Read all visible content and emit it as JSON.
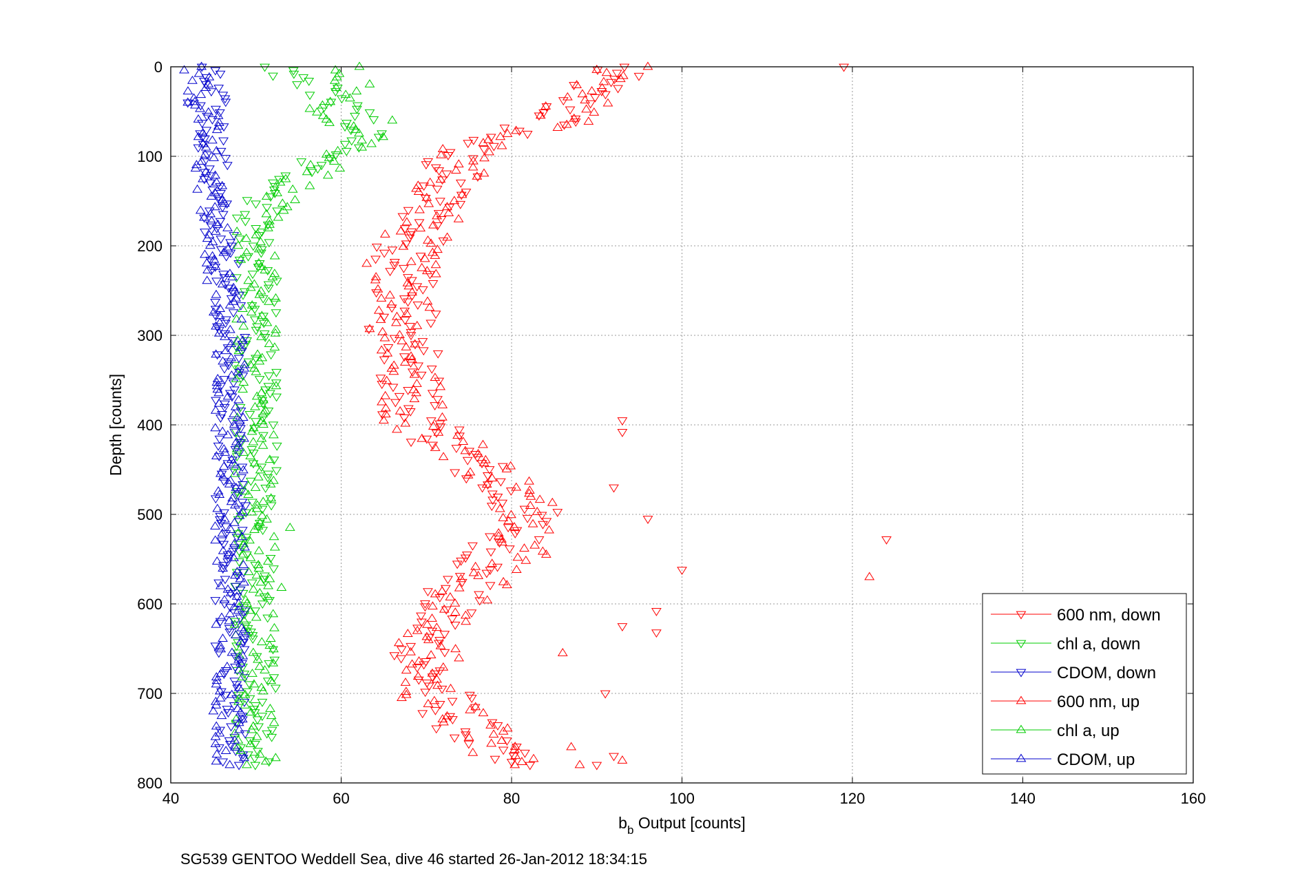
{
  "chart_data": {
    "type": "scatter",
    "title": "",
    "caption": "SG539 GENTOO Weddell Sea, dive 46 started 26-Jan-2012 18:34:15",
    "xlabel_main": "b",
    "xlabel_sub": "b",
    "xlabel_rest": " Output [counts]",
    "ylabel": "Depth [counts]",
    "xlim": [
      40,
      160
    ],
    "ylim": [
      0,
      800
    ],
    "y_reversed": true,
    "grid": true,
    "x_ticks": [
      40,
      60,
      80,
      100,
      120,
      140,
      160
    ],
    "y_ticks": [
      0,
      100,
      200,
      300,
      400,
      500,
      600,
      700,
      800
    ],
    "x_tick_labels": [
      "40",
      "60",
      "80",
      "100",
      "120",
      "140",
      "160"
    ],
    "y_tick_labels": [
      "0",
      "100",
      "200",
      "300",
      "400",
      "500",
      "600",
      "700",
      "800"
    ],
    "legend_position": "bottom-right",
    "series": [
      {
        "name": "600 nm, down",
        "color": "#ff0000",
        "marker": "triangle-down",
        "profile": [
          [
            0,
            92
          ],
          [
            20,
            90
          ],
          [
            40,
            87
          ],
          [
            60,
            85
          ],
          [
            75,
            80
          ],
          [
            90,
            74
          ],
          [
            100,
            73
          ],
          [
            130,
            72
          ],
          [
            160,
            71
          ],
          [
            200,
            68
          ],
          [
            250,
            68
          ],
          [
            300,
            67
          ],
          [
            350,
            68
          ],
          [
            400,
            69
          ],
          [
            430,
            74
          ],
          [
            470,
            78
          ],
          [
            500,
            82
          ],
          [
            530,
            80
          ],
          [
            560,
            76
          ],
          [
            600,
            72
          ],
          [
            640,
            70
          ],
          [
            680,
            70
          ],
          [
            720,
            73
          ],
          [
            760,
            77
          ],
          [
            780,
            79
          ]
        ],
        "jitter": 4,
        "count": 230,
        "extras": [
          [
            0,
            119
          ],
          [
            395,
            93
          ],
          [
            408,
            93
          ],
          [
            470,
            92
          ],
          [
            505,
            96
          ],
          [
            528,
            124
          ],
          [
            562,
            100
          ],
          [
            608,
            97
          ],
          [
            625,
            93
          ],
          [
            632,
            97
          ],
          [
            700,
            91
          ],
          [
            770,
            92
          ],
          [
            780,
            90
          ]
        ]
      },
      {
        "name": "chl a, down",
        "color": "#00cc00",
        "marker": "triangle-down",
        "profile": [
          [
            0,
            52
          ],
          [
            20,
            57
          ],
          [
            40,
            60
          ],
          [
            60,
            62
          ],
          [
            80,
            63
          ],
          [
            95,
            59
          ],
          [
            110,
            56
          ],
          [
            130,
            54
          ],
          [
            150,
            51
          ],
          [
            170,
            50
          ],
          [
            200,
            50
          ],
          [
            300,
            50
          ],
          [
            400,
            50
          ],
          [
            500,
            50
          ],
          [
            600,
            50
          ],
          [
            700,
            50
          ],
          [
            780,
            50
          ]
        ],
        "jitter": 2.5,
        "count": 200,
        "extras": [
          [
            10,
            52
          ],
          [
            45,
            58
          ]
        ]
      },
      {
        "name": "CDOM, down",
        "color": "#0000cc",
        "marker": "triangle-down",
        "profile": [
          [
            0,
            44
          ],
          [
            50,
            45
          ],
          [
            100,
            45
          ],
          [
            150,
            45
          ],
          [
            200,
            46
          ],
          [
            250,
            47
          ],
          [
            300,
            47
          ],
          [
            400,
            47
          ],
          [
            500,
            47
          ],
          [
            600,
            47
          ],
          [
            700,
            47
          ],
          [
            780,
            47
          ]
        ],
        "jitter": 1.8,
        "count": 200,
        "extras": [
          [
            40,
            42
          ],
          [
            80,
            44
          ]
        ]
      },
      {
        "name": "600 nm, up",
        "color": "#ff0000",
        "marker": "triangle-up",
        "profile": [
          [
            0,
            94
          ],
          [
            20,
            91
          ],
          [
            40,
            88
          ],
          [
            60,
            86
          ],
          [
            80,
            79
          ],
          [
            95,
            74
          ],
          [
            120,
            73
          ],
          [
            160,
            71
          ],
          [
            200,
            68
          ],
          [
            250,
            68
          ],
          [
            300,
            67
          ],
          [
            350,
            68
          ],
          [
            400,
            69
          ],
          [
            430,
            75
          ],
          [
            460,
            79
          ],
          [
            500,
            83
          ],
          [
            540,
            82
          ],
          [
            580,
            76
          ],
          [
            620,
            71
          ],
          [
            660,
            70
          ],
          [
            700,
            70
          ],
          [
            740,
            76
          ],
          [
            780,
            81
          ]
        ],
        "jitter": 4,
        "count": 230,
        "extras": [
          [
            220,
            63
          ],
          [
            570,
            122
          ],
          [
            655,
            86
          ],
          [
            760,
            87
          ],
          [
            775,
            93
          ],
          [
            780,
            88
          ]
        ]
      },
      {
        "name": "chl a, up",
        "color": "#00cc00",
        "marker": "triangle-up",
        "profile": [
          [
            0,
            60
          ],
          [
            20,
            62
          ],
          [
            40,
            58
          ],
          [
            60,
            60
          ],
          [
            80,
            64
          ],
          [
            100,
            60
          ],
          [
            120,
            57
          ],
          [
            140,
            53
          ],
          [
            160,
            51
          ],
          [
            180,
            50
          ],
          [
            220,
            50
          ],
          [
            300,
            50
          ],
          [
            400,
            50
          ],
          [
            500,
            50
          ],
          [
            600,
            50
          ],
          [
            700,
            50
          ],
          [
            780,
            50
          ]
        ],
        "jitter": 2.5,
        "count": 200,
        "extras": [
          [
            515,
            54
          ],
          [
            582,
            53
          ],
          [
            60,
            66
          ]
        ]
      },
      {
        "name": "CDOM, up",
        "color": "#0000cc",
        "marker": "triangle-up",
        "profile": [
          [
            0,
            43
          ],
          [
            50,
            44
          ],
          [
            100,
            44
          ],
          [
            150,
            45
          ],
          [
            200,
            45
          ],
          [
            250,
            46
          ],
          [
            300,
            47
          ],
          [
            400,
            47
          ],
          [
            500,
            47
          ],
          [
            600,
            47
          ],
          [
            700,
            47
          ],
          [
            780,
            47
          ]
        ],
        "jitter": 1.8,
        "count": 200,
        "extras": [
          [
            40,
            42
          ],
          [
            210,
            44
          ],
          [
            720,
            45
          ]
        ]
      }
    ]
  }
}
